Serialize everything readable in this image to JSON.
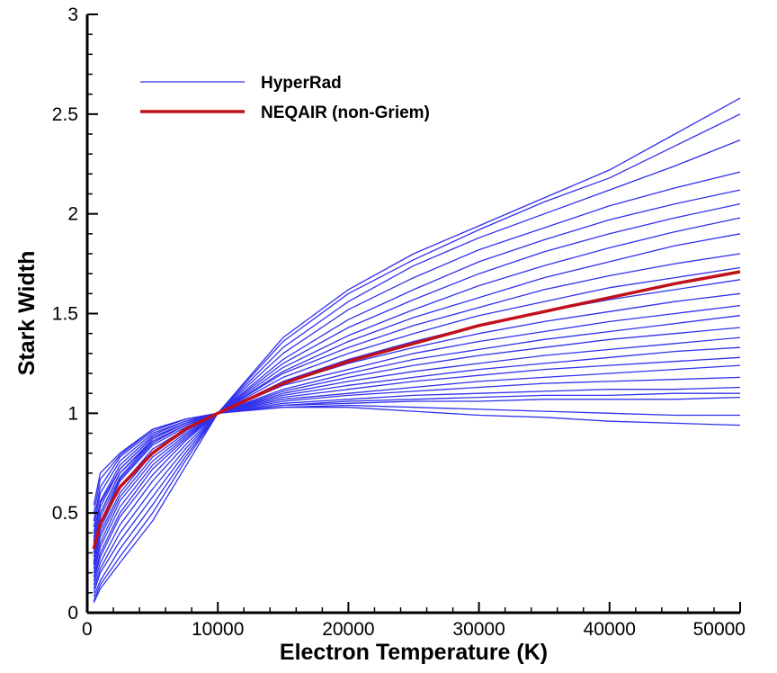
{
  "chart_data": {
    "type": "line",
    "title": "",
    "xlabel": "Electron Temperature (K)",
    "ylabel": "Stark Width",
    "xlim": [
      0,
      50000
    ],
    "ylim": [
      0,
      3
    ],
    "xticks": [
      "0",
      "10000",
      "20000",
      "30000",
      "40000",
      "50000"
    ],
    "yticks": [
      "0",
      "0.5",
      "1",
      "1.5",
      "2",
      "2.5",
      "3"
    ],
    "grid": false,
    "legend": {
      "position": "top-left",
      "entries": [
        "HyperRad",
        "NEQAIR (non-Griem)"
      ]
    },
    "colors": {
      "HyperRad": "#3030ee",
      "NEQAIR (non-Griem)": "#c0101a"
    },
    "x": [
      500,
      1000,
      2500,
      5000,
      7500,
      10000,
      15000,
      20000,
      25000,
      30000,
      35000,
      40000,
      45000,
      50000
    ],
    "series": [
      {
        "name": "NEQAIR (non-Griem)",
        "values": [
          0.32,
          0.45,
          0.63,
          0.8,
          0.92,
          1.0,
          1.15,
          1.26,
          1.35,
          1.44,
          1.51,
          1.58,
          1.65,
          1.71
        ]
      },
      {
        "name": "HyperRad",
        "group": "HyperRad",
        "values": [
          0.05,
          0.12,
          0.25,
          0.46,
          0.73,
          1.0,
          1.38,
          1.62,
          1.8,
          1.94,
          2.08,
          2.22,
          2.4,
          2.58
        ]
      },
      {
        "name": "HyperRad",
        "group": "HyperRad",
        "values": [
          0.06,
          0.14,
          0.28,
          0.5,
          0.76,
          1.0,
          1.36,
          1.6,
          1.77,
          1.92,
          2.06,
          2.18,
          2.34,
          2.5
        ]
      },
      {
        "name": "HyperRad",
        "group": "HyperRad",
        "values": [
          0.08,
          0.16,
          0.32,
          0.54,
          0.78,
          1.0,
          1.33,
          1.56,
          1.74,
          1.88,
          2.0,
          2.12,
          2.24,
          2.37
        ]
      },
      {
        "name": "HyperRad",
        "group": "HyperRad",
        "values": [
          0.1,
          0.2,
          0.36,
          0.58,
          0.8,
          1.0,
          1.3,
          1.52,
          1.68,
          1.82,
          1.93,
          2.04,
          2.13,
          2.21
        ]
      },
      {
        "name": "HyperRad",
        "group": "HyperRad",
        "values": [
          0.12,
          0.22,
          0.4,
          0.62,
          0.82,
          1.0,
          1.27,
          1.47,
          1.62,
          1.76,
          1.87,
          1.97,
          2.05,
          2.12
        ]
      },
      {
        "name": "HyperRad",
        "group": "HyperRad",
        "values": [
          0.14,
          0.25,
          0.44,
          0.66,
          0.84,
          1.0,
          1.25,
          1.43,
          1.57,
          1.7,
          1.81,
          1.9,
          1.98,
          2.05
        ]
      },
      {
        "name": "HyperRad",
        "group": "HyperRad",
        "values": [
          0.16,
          0.28,
          0.48,
          0.69,
          0.86,
          1.0,
          1.23,
          1.39,
          1.52,
          1.64,
          1.74,
          1.83,
          1.91,
          1.98
        ]
      },
      {
        "name": "HyperRad",
        "group": "HyperRad",
        "values": [
          0.18,
          0.3,
          0.5,
          0.72,
          0.87,
          1.0,
          1.21,
          1.36,
          1.48,
          1.58,
          1.68,
          1.76,
          1.84,
          1.9
        ]
      },
      {
        "name": "HyperRad",
        "group": "HyperRad",
        "values": [
          0.2,
          0.33,
          0.53,
          0.74,
          0.88,
          1.0,
          1.2,
          1.33,
          1.44,
          1.53,
          1.62,
          1.69,
          1.75,
          1.8
        ]
      },
      {
        "name": "HyperRad",
        "group": "HyperRad",
        "values": [
          0.22,
          0.35,
          0.56,
          0.76,
          0.89,
          1.0,
          1.18,
          1.3,
          1.4,
          1.49,
          1.56,
          1.63,
          1.68,
          1.73
        ]
      },
      {
        "name": "HyperRad",
        "group": "HyperRad",
        "values": [
          0.24,
          0.38,
          0.58,
          0.78,
          0.9,
          1.0,
          1.16,
          1.27,
          1.36,
          1.44,
          1.51,
          1.57,
          1.62,
          1.67
        ]
      },
      {
        "name": "HyperRad",
        "group": "HyperRad",
        "values": [
          0.26,
          0.4,
          0.6,
          0.8,
          0.91,
          1.0,
          1.15,
          1.25,
          1.33,
          1.4,
          1.46,
          1.51,
          1.56,
          1.6
        ]
      },
      {
        "name": "HyperRad",
        "group": "HyperRad",
        "values": [
          0.28,
          0.42,
          0.63,
          0.82,
          0.92,
          1.0,
          1.14,
          1.22,
          1.3,
          1.36,
          1.41,
          1.46,
          1.5,
          1.54
        ]
      },
      {
        "name": "HyperRad",
        "group": "HyperRad",
        "values": [
          0.3,
          0.45,
          0.66,
          0.84,
          0.93,
          1.0,
          1.12,
          1.2,
          1.27,
          1.32,
          1.37,
          1.41,
          1.45,
          1.49
        ]
      },
      {
        "name": "HyperRad",
        "group": "HyperRad",
        "values": [
          0.33,
          0.48,
          0.68,
          0.86,
          0.94,
          1.0,
          1.11,
          1.18,
          1.24,
          1.29,
          1.33,
          1.37,
          1.4,
          1.43
        ]
      },
      {
        "name": "HyperRad",
        "group": "HyperRad",
        "values": [
          0.35,
          0.5,
          0.7,
          0.87,
          0.95,
          1.0,
          1.1,
          1.16,
          1.21,
          1.25,
          1.29,
          1.32,
          1.35,
          1.38
        ]
      },
      {
        "name": "HyperRad",
        "group": "HyperRad",
        "values": [
          0.38,
          0.53,
          0.72,
          0.88,
          0.95,
          1.0,
          1.09,
          1.14,
          1.18,
          1.22,
          1.25,
          1.28,
          1.31,
          1.33
        ]
      },
      {
        "name": "HyperRad",
        "group": "HyperRad",
        "values": [
          0.4,
          0.56,
          0.74,
          0.89,
          0.96,
          1.0,
          1.08,
          1.12,
          1.16,
          1.19,
          1.22,
          1.24,
          1.26,
          1.28
        ]
      },
      {
        "name": "HyperRad",
        "group": "HyperRad",
        "values": [
          0.43,
          0.6,
          0.76,
          0.9,
          0.96,
          1.0,
          1.07,
          1.1,
          1.13,
          1.16,
          1.18,
          1.2,
          1.22,
          1.24
        ]
      },
      {
        "name": "HyperRad",
        "group": "HyperRad",
        "values": [
          0.46,
          0.63,
          0.78,
          0.91,
          0.97,
          1.0,
          1.06,
          1.09,
          1.11,
          1.13,
          1.15,
          1.16,
          1.17,
          1.18
        ]
      },
      {
        "name": "HyperRad",
        "group": "HyperRad",
        "values": [
          0.5,
          0.67,
          0.79,
          0.92,
          0.97,
          1.0,
          1.05,
          1.07,
          1.09,
          1.1,
          1.11,
          1.12,
          1.12,
          1.13
        ]
      },
      {
        "name": "HyperRad",
        "group": "HyperRad",
        "values": [
          0.54,
          0.7,
          0.8,
          0.92,
          0.97,
          1.0,
          1.04,
          1.06,
          1.07,
          1.08,
          1.09,
          1.09,
          1.1,
          1.1
        ]
      },
      {
        "name": "HyperRad",
        "group": "HyperRad",
        "values": [
          0.36,
          0.55,
          0.72,
          0.88,
          0.95,
          1.0,
          1.04,
          1.05,
          1.06,
          1.06,
          1.07,
          1.07,
          1.07,
          1.08
        ]
      },
      {
        "name": "HyperRad",
        "group": "HyperRad",
        "values": [
          0.3,
          0.5,
          0.7,
          0.86,
          0.94,
          1.0,
          1.03,
          1.04,
          1.03,
          1.02,
          1.01,
          1.0,
          0.99,
          0.99
        ]
      },
      {
        "name": "HyperRad",
        "group": "HyperRad",
        "values": [
          0.25,
          0.45,
          0.67,
          0.85,
          0.94,
          1.0,
          1.03,
          1.03,
          1.01,
          0.99,
          0.98,
          0.96,
          0.95,
          0.94
        ]
      }
    ]
  }
}
